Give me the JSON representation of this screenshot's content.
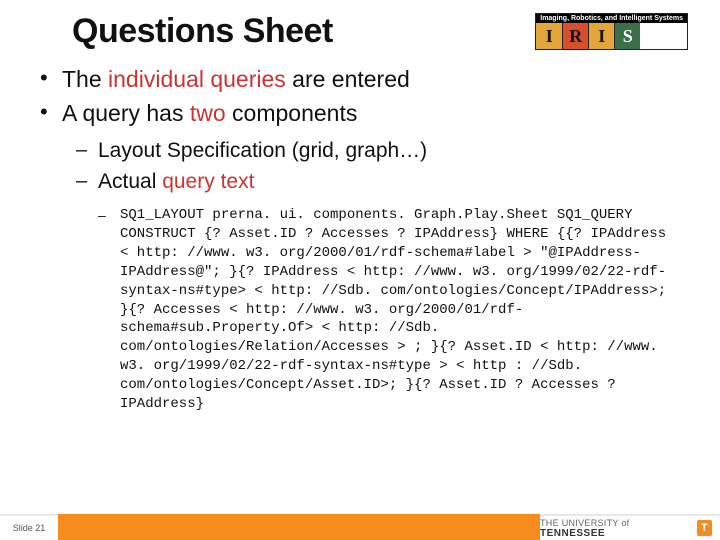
{
  "title": "Questions Sheet",
  "logo": {
    "bar": "Imaging, Robotics, and Intelligent Systems",
    "letters": [
      "I",
      "R",
      "I",
      "S"
    ]
  },
  "bullets": {
    "b1_prefix": "The ",
    "b1_hl": "individual queries",
    "b1_suffix": " are entered",
    "b2_prefix": "A query has ",
    "b2_hl": "two",
    "b2_suffix": " components",
    "sub1": "Layout Specification (grid, graph…)",
    "sub2_prefix": "Actual ",
    "sub2_hl": "query text"
  },
  "code": "SQ1_LAYOUT prerna. ui. components. Graph.Play.Sheet SQ1_QUERY CONSTRUCT {? Asset.ID ? Accesses ? IPAddress} WHERE {{? IPAddress < http: //www. w3. org/2000/01/rdf-schema#label > \"@IPAddress-IPAddress@\"; }{? IPAddress < http: //www. w3. org/1999/02/22-rdf-syntax-ns#type> < http: //Sdb. com/ontologies/Concept/IPAddress>; }{? Accesses < http: //www. w3. org/2000/01/rdf-schema#sub.Property.Of> < http: //Sdb. com/ontologies/Relation/Accesses > ; }{? Asset.ID < http: //www. w3. org/1999/02/22-rdf-syntax-ns#type > < http : //Sdb. com/ontologies/Concept/Asset.ID>; }{? Asset.ID ? Accesses ? IPAddress}",
  "footer": {
    "slide_label": "Slide 21",
    "university_small": "THE UNIVERSITY of",
    "university_big": "TENNESSEE",
    "t_mark": "T"
  },
  "colors": {
    "highlight": "#c33",
    "orange": "#f68b1e",
    "logo_bar_bg": "#000",
    "logo_colors": [
      "#e4a63a",
      "#d94f2b",
      "#e4a63a",
      "#3b6f47"
    ]
  }
}
